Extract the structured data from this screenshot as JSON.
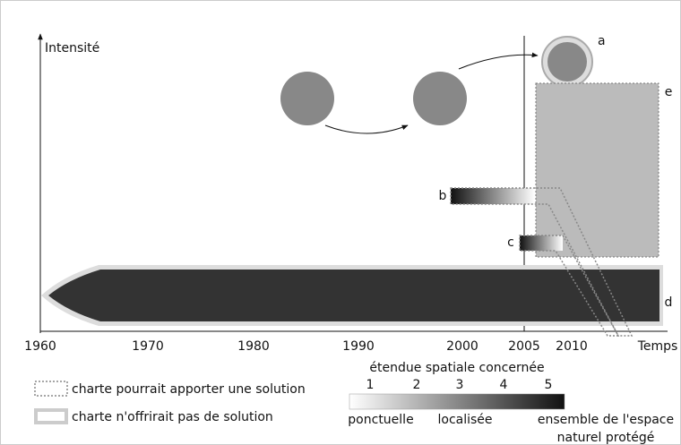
{
  "axes": {
    "y_label": "Intensité",
    "x_label": "Temps",
    "x_ticks": [
      "1960",
      "1970",
      "1980",
      "1990",
      "2000",
      "2005",
      "2010"
    ]
  },
  "elements": {
    "a": "a",
    "b": "b",
    "c": "c",
    "d": "d",
    "e": "e"
  },
  "legend": {
    "dotted": "charte pourrait apporter une solution",
    "solid": "charte n'offrirait pas de solution"
  },
  "scale": {
    "title": "étendue spatiale concernée",
    "levels": [
      "1",
      "2",
      "3",
      "4",
      "5"
    ],
    "low": "ponctuelle",
    "mid": "localisée",
    "high": [
      "ensemble de l'espace",
      "naturel protégé"
    ]
  }
}
